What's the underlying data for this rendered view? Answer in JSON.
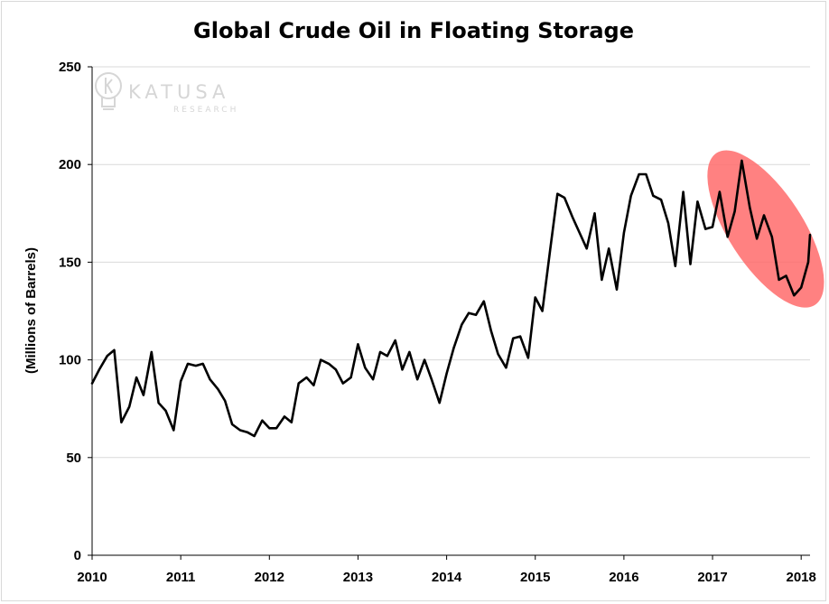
{
  "chart_data": {
    "type": "line",
    "title": "Global Crude Oil in Floating Storage",
    "xlabel": "",
    "ylabel": "(Millions of Barrels)",
    "xlim": [
      2010,
      2018.1
    ],
    "ylim": [
      0,
      250
    ],
    "y_ticks": [
      0,
      50,
      100,
      150,
      200,
      250
    ],
    "x_ticks": [
      2010,
      2011,
      2012,
      2013,
      2014,
      2015,
      2016,
      2017,
      2018
    ],
    "grid": "horizontal",
    "line_color": "#000000",
    "highlight_color": "#ff6b6b",
    "highlight": {
      "x_range": [
        2017.1,
        2018.1
      ],
      "y_range": [
        132,
        202
      ]
    },
    "watermark": {
      "name": "KATUSA",
      "sub": "RESEARCH",
      "icon": "lightbulb-k-icon"
    },
    "series": [
      {
        "values": [
          [
            2010.0,
            88
          ],
          [
            2010.08,
            95
          ],
          [
            2010.17,
            102
          ],
          [
            2010.25,
            105
          ],
          [
            2010.33,
            68
          ],
          [
            2010.42,
            76
          ],
          [
            2010.5,
            91
          ],
          [
            2010.58,
            82
          ],
          [
            2010.67,
            104
          ],
          [
            2010.75,
            78
          ],
          [
            2010.83,
            74
          ],
          [
            2010.92,
            64
          ],
          [
            2011.0,
            89
          ],
          [
            2011.08,
            98
          ],
          [
            2011.17,
            97
          ],
          [
            2011.25,
            98
          ],
          [
            2011.33,
            90
          ],
          [
            2011.42,
            85
          ],
          [
            2011.5,
            79
          ],
          [
            2011.58,
            67
          ],
          [
            2011.67,
            64
          ],
          [
            2011.75,
            63
          ],
          [
            2011.83,
            61
          ],
          [
            2011.92,
            69
          ],
          [
            2012.0,
            65
          ],
          [
            2012.08,
            65
          ],
          [
            2012.17,
            71
          ],
          [
            2012.25,
            68
          ],
          [
            2012.33,
            88
          ],
          [
            2012.42,
            91
          ],
          [
            2012.5,
            87
          ],
          [
            2012.58,
            100
          ],
          [
            2012.67,
            98
          ],
          [
            2012.75,
            95
          ],
          [
            2012.83,
            88
          ],
          [
            2012.92,
            91
          ],
          [
            2013.0,
            108
          ],
          [
            2013.08,
            96
          ],
          [
            2013.17,
            90
          ],
          [
            2013.25,
            104
          ],
          [
            2013.33,
            102
          ],
          [
            2013.42,
            110
          ],
          [
            2013.5,
            95
          ],
          [
            2013.58,
            104
          ],
          [
            2013.67,
            90
          ],
          [
            2013.75,
            100
          ],
          [
            2013.83,
            90
          ],
          [
            2013.92,
            78
          ],
          [
            2014.0,
            93
          ],
          [
            2014.08,
            106
          ],
          [
            2014.17,
            118
          ],
          [
            2014.25,
            124
          ],
          [
            2014.33,
            123
          ],
          [
            2014.42,
            130
          ],
          [
            2014.5,
            115
          ],
          [
            2014.58,
            103
          ],
          [
            2014.67,
            96
          ],
          [
            2014.75,
            111
          ],
          [
            2014.83,
            112
          ],
          [
            2014.92,
            101
          ],
          [
            2015.0,
            132
          ],
          [
            2015.08,
            125
          ],
          [
            2015.17,
            157
          ],
          [
            2015.25,
            185
          ],
          [
            2015.33,
            183
          ],
          [
            2015.42,
            173
          ],
          [
            2015.5,
            165
          ],
          [
            2015.58,
            157
          ],
          [
            2015.67,
            175
          ],
          [
            2015.75,
            141
          ],
          [
            2015.83,
            157
          ],
          [
            2015.92,
            136
          ],
          [
            2016.0,
            165
          ],
          [
            2016.08,
            184
          ],
          [
            2016.17,
            195
          ],
          [
            2016.25,
            195
          ],
          [
            2016.33,
            184
          ],
          [
            2016.42,
            182
          ],
          [
            2016.5,
            170
          ],
          [
            2016.58,
            148
          ],
          [
            2016.67,
            186
          ],
          [
            2016.75,
            149
          ],
          [
            2016.83,
            181
          ],
          [
            2016.92,
            167
          ],
          [
            2017.0,
            168
          ],
          [
            2017.08,
            186
          ],
          [
            2017.17,
            163
          ],
          [
            2017.25,
            176
          ],
          [
            2017.33,
            202
          ],
          [
            2017.42,
            178
          ],
          [
            2017.5,
            162
          ],
          [
            2017.58,
            174
          ],
          [
            2017.67,
            163
          ],
          [
            2017.75,
            141
          ],
          [
            2017.83,
            143
          ],
          [
            2017.92,
            133
          ],
          [
            2018.0,
            137
          ],
          [
            2018.08,
            150
          ],
          [
            2018.1,
            164
          ]
        ]
      }
    ]
  }
}
